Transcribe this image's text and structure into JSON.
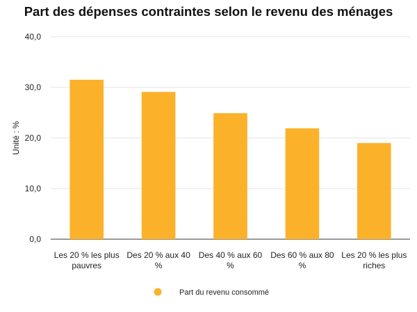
{
  "chart_data": {
    "type": "bar",
    "title": "Part des dépenses contraintes selon le revenu des ménages",
    "ylabel": "Unité : %",
    "xlabel": "",
    "categories": [
      [
        "Les 20 % les plus",
        "pauvres"
      ],
      [
        "Des 20 % aux 40",
        "%"
      ],
      [
        "Des 40 % aux 60",
        "%"
      ],
      [
        "Des 60 % aux 80",
        "%"
      ],
      [
        "Les 20 % les plus",
        "riches"
      ]
    ],
    "series": [
      {
        "name": "Part du revenu consommé",
        "values": [
          31.5,
          29.1,
          24.9,
          21.9,
          19.0
        ],
        "color": "#FBB12A"
      }
    ],
    "ylim": [
      0,
      40
    ],
    "yticks": [
      "0,0",
      "10,0",
      "20,0",
      "30,0",
      "40,0"
    ],
    "grid": true,
    "legend": "bottom"
  }
}
